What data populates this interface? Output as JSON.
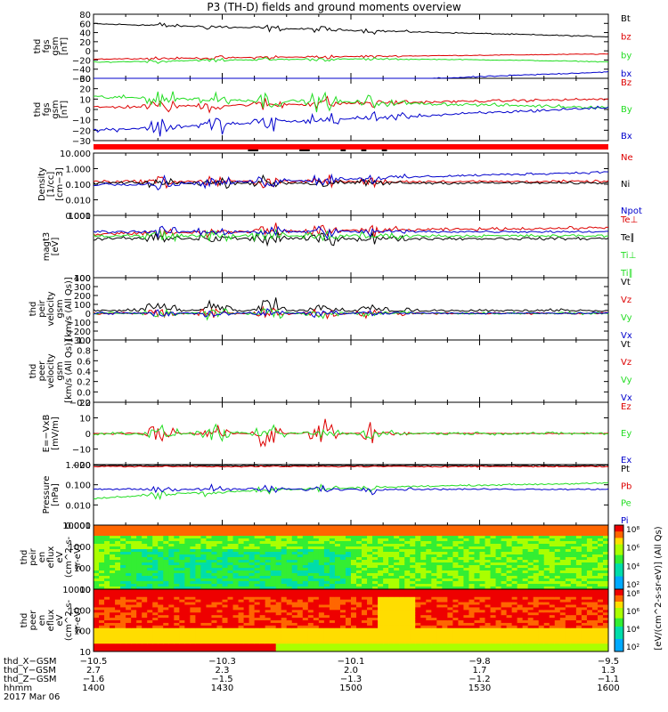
{
  "title": "P3 (TH-D) fields and ground moments overview",
  "colors": {
    "black": "#000000",
    "red": "#dd0000",
    "green": "#22dd22",
    "blue": "#0000cc"
  },
  "chart_data": [
    {
      "type": "line",
      "id": "fgs",
      "ylabel": [
        "thd",
        "fgs",
        "gsm",
        "[nT]"
      ],
      "ylim": [
        -20,
        80
      ],
      "ticks": [
        "80",
        "60",
        "40",
        "20",
        "0",
        "−20",
        "−40",
        "−60"
      ],
      "legend": [
        {
          "label": "Bt",
          "color": "black"
        },
        {
          "label": "bz",
          "color": "red"
        },
        {
          "label": "by",
          "color": "green"
        },
        {
          "label": "bx",
          "color": "blue"
        }
      ]
    },
    {
      "type": "line",
      "id": "fgs2",
      "ylabel": [
        "thd",
        "fgs",
        "gsm",
        "[nT]"
      ],
      "ylim": [
        -30,
        30
      ],
      "ticks": [
        "30",
        "20",
        "10",
        "0",
        "−10",
        "−20",
        "−30"
      ],
      "legend": [
        {
          "label": "Bz",
          "color": "red"
        },
        {
          "label": "By",
          "color": "green"
        },
        {
          "label": "Bx",
          "color": "blue"
        }
      ]
    },
    {
      "type": "line",
      "id": "dens",
      "ylabel": [
        "Density",
        "[1/cc]",
        "[cm−3]"
      ],
      "ylog": true,
      "ylim": [
        0.001,
        10
      ],
      "ticks": [
        "10.000",
        "1.000",
        "0.100",
        "0.010",
        "0.001"
      ],
      "legend": [
        {
          "label": "Ne",
          "color": "red"
        },
        {
          "label": "Ni",
          "color": "black"
        },
        {
          "label": "Npot",
          "color": "blue"
        }
      ]
    },
    {
      "type": "line",
      "id": "temp",
      "ylabel": [
        "magt3",
        "[eV]"
      ],
      "ylog": true,
      "ylim": [
        100,
        10000
      ],
      "ticks": [
        "1000",
        "100"
      ],
      "legend": [
        {
          "label": "Te⊥",
          "color": "red"
        },
        {
          "label": "Te∥",
          "color": "black"
        },
        {
          "label": "Ti⊥",
          "color": "green"
        },
        {
          "label": "Ti∥",
          "color": "green"
        }
      ]
    },
    {
      "type": "line",
      "id": "vpeir",
      "ylabel": [
        "thd",
        "peir",
        "velocity",
        "gsm",
        "[km/s (All Qs)]"
      ],
      "ylim": [
        -300,
        400
      ],
      "ticks": [
        "400",
        "300",
        "200",
        "100",
        "0",
        "−100",
        "−200",
        "−300"
      ],
      "legend": [
        {
          "label": "Vt",
          "color": "black"
        },
        {
          "label": "Vz",
          "color": "red"
        },
        {
          "label": "Vy",
          "color": "green"
        },
        {
          "label": "Vx",
          "color": "blue"
        }
      ]
    },
    {
      "type": "line",
      "id": "vpeer",
      "ylabel": [
        "thd",
        "peer",
        "velocity",
        "gsm",
        "[km/s (All Qs)]"
      ],
      "ylim": [
        -0.2,
        1.0
      ],
      "ticks": [
        "1.0",
        "0.8",
        "0.6",
        "0.4",
        "0.2",
        "0.0",
        "−0.2"
      ],
      "legend": [
        {
          "label": "Vt",
          "color": "black"
        },
        {
          "label": "Vz",
          "color": "red"
        },
        {
          "label": "Vy",
          "color": "green"
        },
        {
          "label": "Vx",
          "color": "blue"
        }
      ]
    },
    {
      "type": "line",
      "id": "efield",
      "ylabel": [
        "E=−VxB",
        "[mV/m]"
      ],
      "ylim": [
        -20,
        20
      ],
      "ticks": [
        "20",
        "10",
        "0",
        "−10",
        "−20"
      ],
      "legend": [
        {
          "label": "Ez",
          "color": "red"
        },
        {
          "label": "Ey",
          "color": "green"
        },
        {
          "label": "Ex",
          "color": "blue"
        }
      ]
    },
    {
      "type": "line",
      "id": "press",
      "ylabel": [
        "Pressure",
        "[nPa]"
      ],
      "ylog": true,
      "ylim": [
        0.001,
        1
      ],
      "ticks": [
        "1.000",
        "0.100",
        "0.010",
        "0.001"
      ],
      "legend": [
        {
          "label": "Pt",
          "color": "black"
        },
        {
          "label": "Pb",
          "color": "red"
        },
        {
          "label": "Pe",
          "color": "green"
        },
        {
          "label": "Pi",
          "color": "blue"
        }
      ]
    },
    {
      "type": "heatmap",
      "id": "ieflux",
      "ylabel": [
        "thd",
        "peir",
        "en",
        "eflux",
        "eV",
        "(cm^2-s-",
        "sr-eV)"
      ],
      "ylog": true,
      "ylim": [
        10,
        10000
      ],
      "ticks": [
        "10000",
        "1000",
        "100",
        "10"
      ]
    },
    {
      "type": "heatmap",
      "id": "eeflux",
      "ylabel": [
        "thd",
        "peer",
        "en",
        "eflux",
        "eV",
        "(cm^2-s-",
        "sr-eV)"
      ],
      "ylog": true,
      "ylim": [
        10,
        10000
      ],
      "ticks": [
        "10000",
        "1000",
        "100",
        "10"
      ]
    }
  ],
  "colorbar": {
    "label": "[eV/(cm^2-s-sr-eV)] (All Qs)",
    "ticks1": [
      "10⁸",
      "10⁶",
      "10⁴",
      "10²"
    ],
    "ticks2": [
      "10⁸",
      "10⁶",
      "10⁴",
      "10²"
    ]
  },
  "xaxis": {
    "rows": [
      {
        "label": "thd_X−GSM",
        "values": [
          "−10.5",
          "−10.3",
          "−10.1",
          "−9.8",
          "−9.5"
        ]
      },
      {
        "label": "thd_Y−GSM",
        "values": [
          "2.7",
          "2.3",
          "2.0",
          "1.7",
          "1.3"
        ]
      },
      {
        "label": "thd_Z−GSM",
        "values": [
          "−1.6",
          "−1.5",
          "−1.3",
          "−1.2",
          "−1.1"
        ]
      },
      {
        "label": "hhmm",
        "values": [
          "1400",
          "1430",
          "1500",
          "1530",
          "1600"
        ]
      }
    ],
    "date": "2017 Mar 06"
  }
}
